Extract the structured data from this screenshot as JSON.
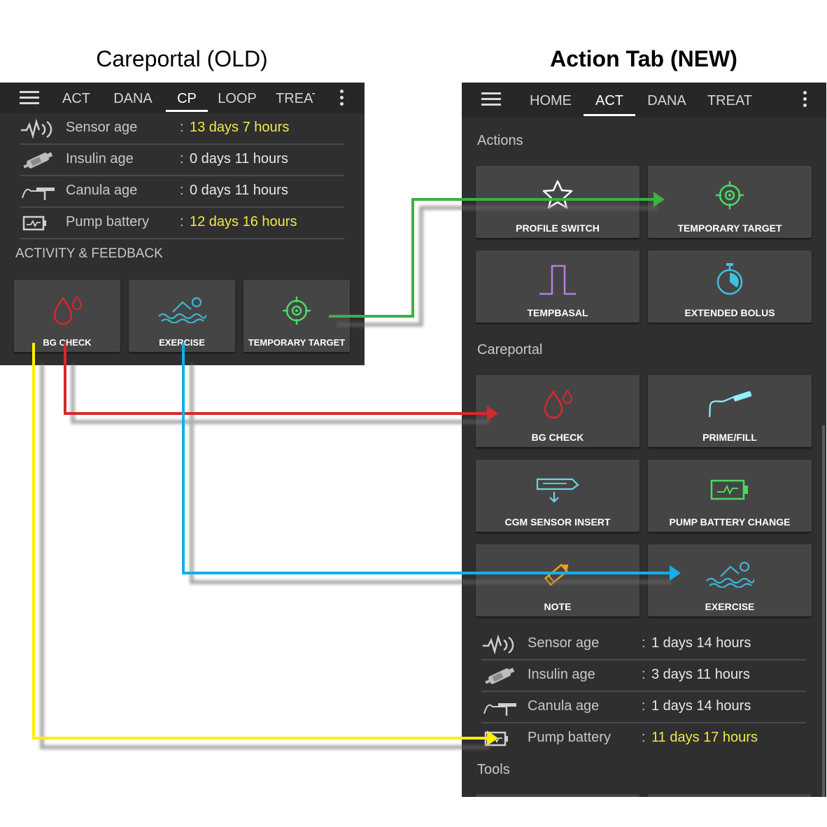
{
  "headings": {
    "old": "Careportal (OLD)",
    "new": "Action Tab (NEW)"
  },
  "old": {
    "tabs": [
      "ACT",
      "DANA",
      "CP",
      "LOOP",
      "TREAT"
    ],
    "active_tab": "CP",
    "rows": [
      {
        "icon": "sensor-icon",
        "label": "Sensor age",
        "value": "13 days 7 hours",
        "warn": true
      },
      {
        "icon": "insulin-icon",
        "label": "Insulin age",
        "value": "0 days 11 hours",
        "warn": false
      },
      {
        "icon": "canula-icon",
        "label": "Canula age",
        "value": "0 days 11 hours",
        "warn": false
      },
      {
        "icon": "battery-icon",
        "label": "Pump battery",
        "value": "12 days 16 hours",
        "warn": true
      }
    ],
    "colon": ":",
    "section": "ACTIVITY & FEEDBACK",
    "buttons": [
      {
        "icon": "bg-drop-icon",
        "label": "BG CHECK"
      },
      {
        "icon": "exercise-icon",
        "label": "EXERCISE"
      },
      {
        "icon": "target-icon",
        "label": "TEMPORARY TARGET"
      }
    ]
  },
  "new": {
    "tabs": [
      "HOME",
      "ACT",
      "DANA",
      "TREAT"
    ],
    "active_tab": "ACT",
    "section_actions": "Actions",
    "section_careportal": "Careportal",
    "section_tools": "Tools",
    "actions": [
      {
        "icon": "star-icon",
        "label": "PROFILE SWITCH"
      },
      {
        "icon": "target-icon",
        "label": "TEMPORARY TARGET"
      },
      {
        "icon": "tempbasal-icon",
        "label": "TEMPBASAL"
      },
      {
        "icon": "stopwatch-icon",
        "label": "EXTENDED BOLUS"
      }
    ],
    "careportal": [
      {
        "icon": "bg-drop-icon",
        "label": "BG CHECK"
      },
      {
        "icon": "prime-fill-icon",
        "label": "PRIME/FILL"
      },
      {
        "icon": "cgm-sensor-icon",
        "label": "CGM SENSOR INSERT"
      },
      {
        "icon": "pump-battery-icon",
        "label": "PUMP BATTERY CHANGE"
      },
      {
        "icon": "pencil-icon",
        "label": "NOTE"
      },
      {
        "icon": "exercise-icon",
        "label": "EXERCISE"
      }
    ],
    "rows": [
      {
        "icon": "sensor-icon",
        "label": "Sensor age",
        "value": "1 days 14 hours",
        "warn": false
      },
      {
        "icon": "insulin-icon",
        "label": "Insulin age",
        "value": "3 days 11 hours",
        "warn": false
      },
      {
        "icon": "canula-icon",
        "label": "Canula age",
        "value": "1 days 14 hours",
        "warn": false
      },
      {
        "icon": "battery-icon",
        "label": "Pump battery",
        "value": "11 days 17 hours",
        "warn": true
      }
    ],
    "colon": ":"
  },
  "colors": {
    "green": "#3cb043",
    "red": "#d7282f",
    "blue": "#12b0ea",
    "yellow": "#ffef00",
    "warn_text": "#f0e94a",
    "panel_bg": "#2f2f2f",
    "button_bg": "#454545"
  },
  "arrows": [
    {
      "color": "green",
      "from": "TEMPORARY TARGET (old)",
      "to": "TEMPORARY TARGET (new)"
    },
    {
      "color": "red",
      "from": "BG CHECK (old)",
      "to": "BG CHECK (new)"
    },
    {
      "color": "blue",
      "from": "EXERCISE (old)",
      "to": "EXERCISE (new)"
    },
    {
      "color": "yellow",
      "from": "BG CHECK (old)",
      "to": "Pump battery (new)"
    }
  ]
}
